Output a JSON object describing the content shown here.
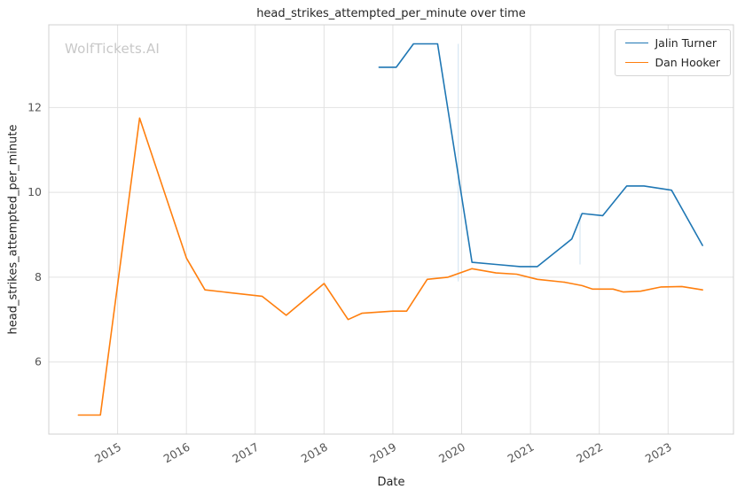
{
  "figure": {
    "watermark": "WolfTickets.AI"
  },
  "chart_data": {
    "type": "line",
    "title": "head_strikes_attempted_per_minute over time",
    "xlabel": "Date",
    "ylabel": "head_strikes_attempted_per_minute",
    "xlim": [
      2014.0,
      2023.95
    ],
    "ylim": [
      4.3,
      13.95
    ],
    "xticks": [
      2015,
      2016,
      2017,
      2018,
      2019,
      2020,
      2021,
      2022,
      2023
    ],
    "yticks": [
      6,
      8,
      10,
      12
    ],
    "grid": true,
    "legend_position": "upper right",
    "colors": {
      "grid": "#e2e2e2",
      "spine": "#d0d0d0",
      "tick_text": "#555555",
      "event_line": "#b7d4ea"
    },
    "series": [
      {
        "name": "Jalin Turner",
        "color": "#1f77b4",
        "points": [
          [
            2018.8,
            12.95
          ],
          [
            2019.05,
            12.95
          ],
          [
            2019.3,
            13.5
          ],
          [
            2019.65,
            13.5
          ],
          [
            2020.15,
            8.35
          ],
          [
            2020.5,
            8.3
          ],
          [
            2020.85,
            8.25
          ],
          [
            2021.1,
            8.25
          ],
          [
            2021.6,
            8.9
          ],
          [
            2021.75,
            9.5
          ],
          [
            2022.05,
            9.45
          ],
          [
            2022.4,
            10.15
          ],
          [
            2022.65,
            10.15
          ],
          [
            2023.05,
            10.05
          ],
          [
            2023.5,
            8.75
          ]
        ]
      },
      {
        "name": "Dan Hooker",
        "color": "#ff7f0e",
        "points": [
          [
            2014.43,
            4.75
          ],
          [
            2014.75,
            4.75
          ],
          [
            2015.32,
            11.75
          ],
          [
            2016.0,
            8.45
          ],
          [
            2016.27,
            7.7
          ],
          [
            2017.1,
            7.55
          ],
          [
            2017.45,
            7.1
          ],
          [
            2018.0,
            7.85
          ],
          [
            2018.35,
            7.0
          ],
          [
            2018.55,
            7.15
          ],
          [
            2019.0,
            7.2
          ],
          [
            2019.2,
            7.2
          ],
          [
            2019.5,
            7.95
          ],
          [
            2019.8,
            8.0
          ],
          [
            2020.15,
            8.2
          ],
          [
            2020.5,
            8.1
          ],
          [
            2020.8,
            8.07
          ],
          [
            2021.1,
            7.95
          ],
          [
            2021.5,
            7.88
          ],
          [
            2021.75,
            7.8
          ],
          [
            2021.9,
            7.72
          ],
          [
            2022.2,
            7.72
          ],
          [
            2022.35,
            7.65
          ],
          [
            2022.6,
            7.67
          ],
          [
            2022.9,
            7.77
          ],
          [
            2023.2,
            7.78
          ],
          [
            2023.5,
            7.7
          ]
        ]
      }
    ],
    "event_lines": [
      {
        "x": 2019.95,
        "y1": 7.9,
        "y2": 13.5
      },
      {
        "x": 2021.72,
        "y1": 8.3,
        "y2": 9.5
      }
    ]
  }
}
